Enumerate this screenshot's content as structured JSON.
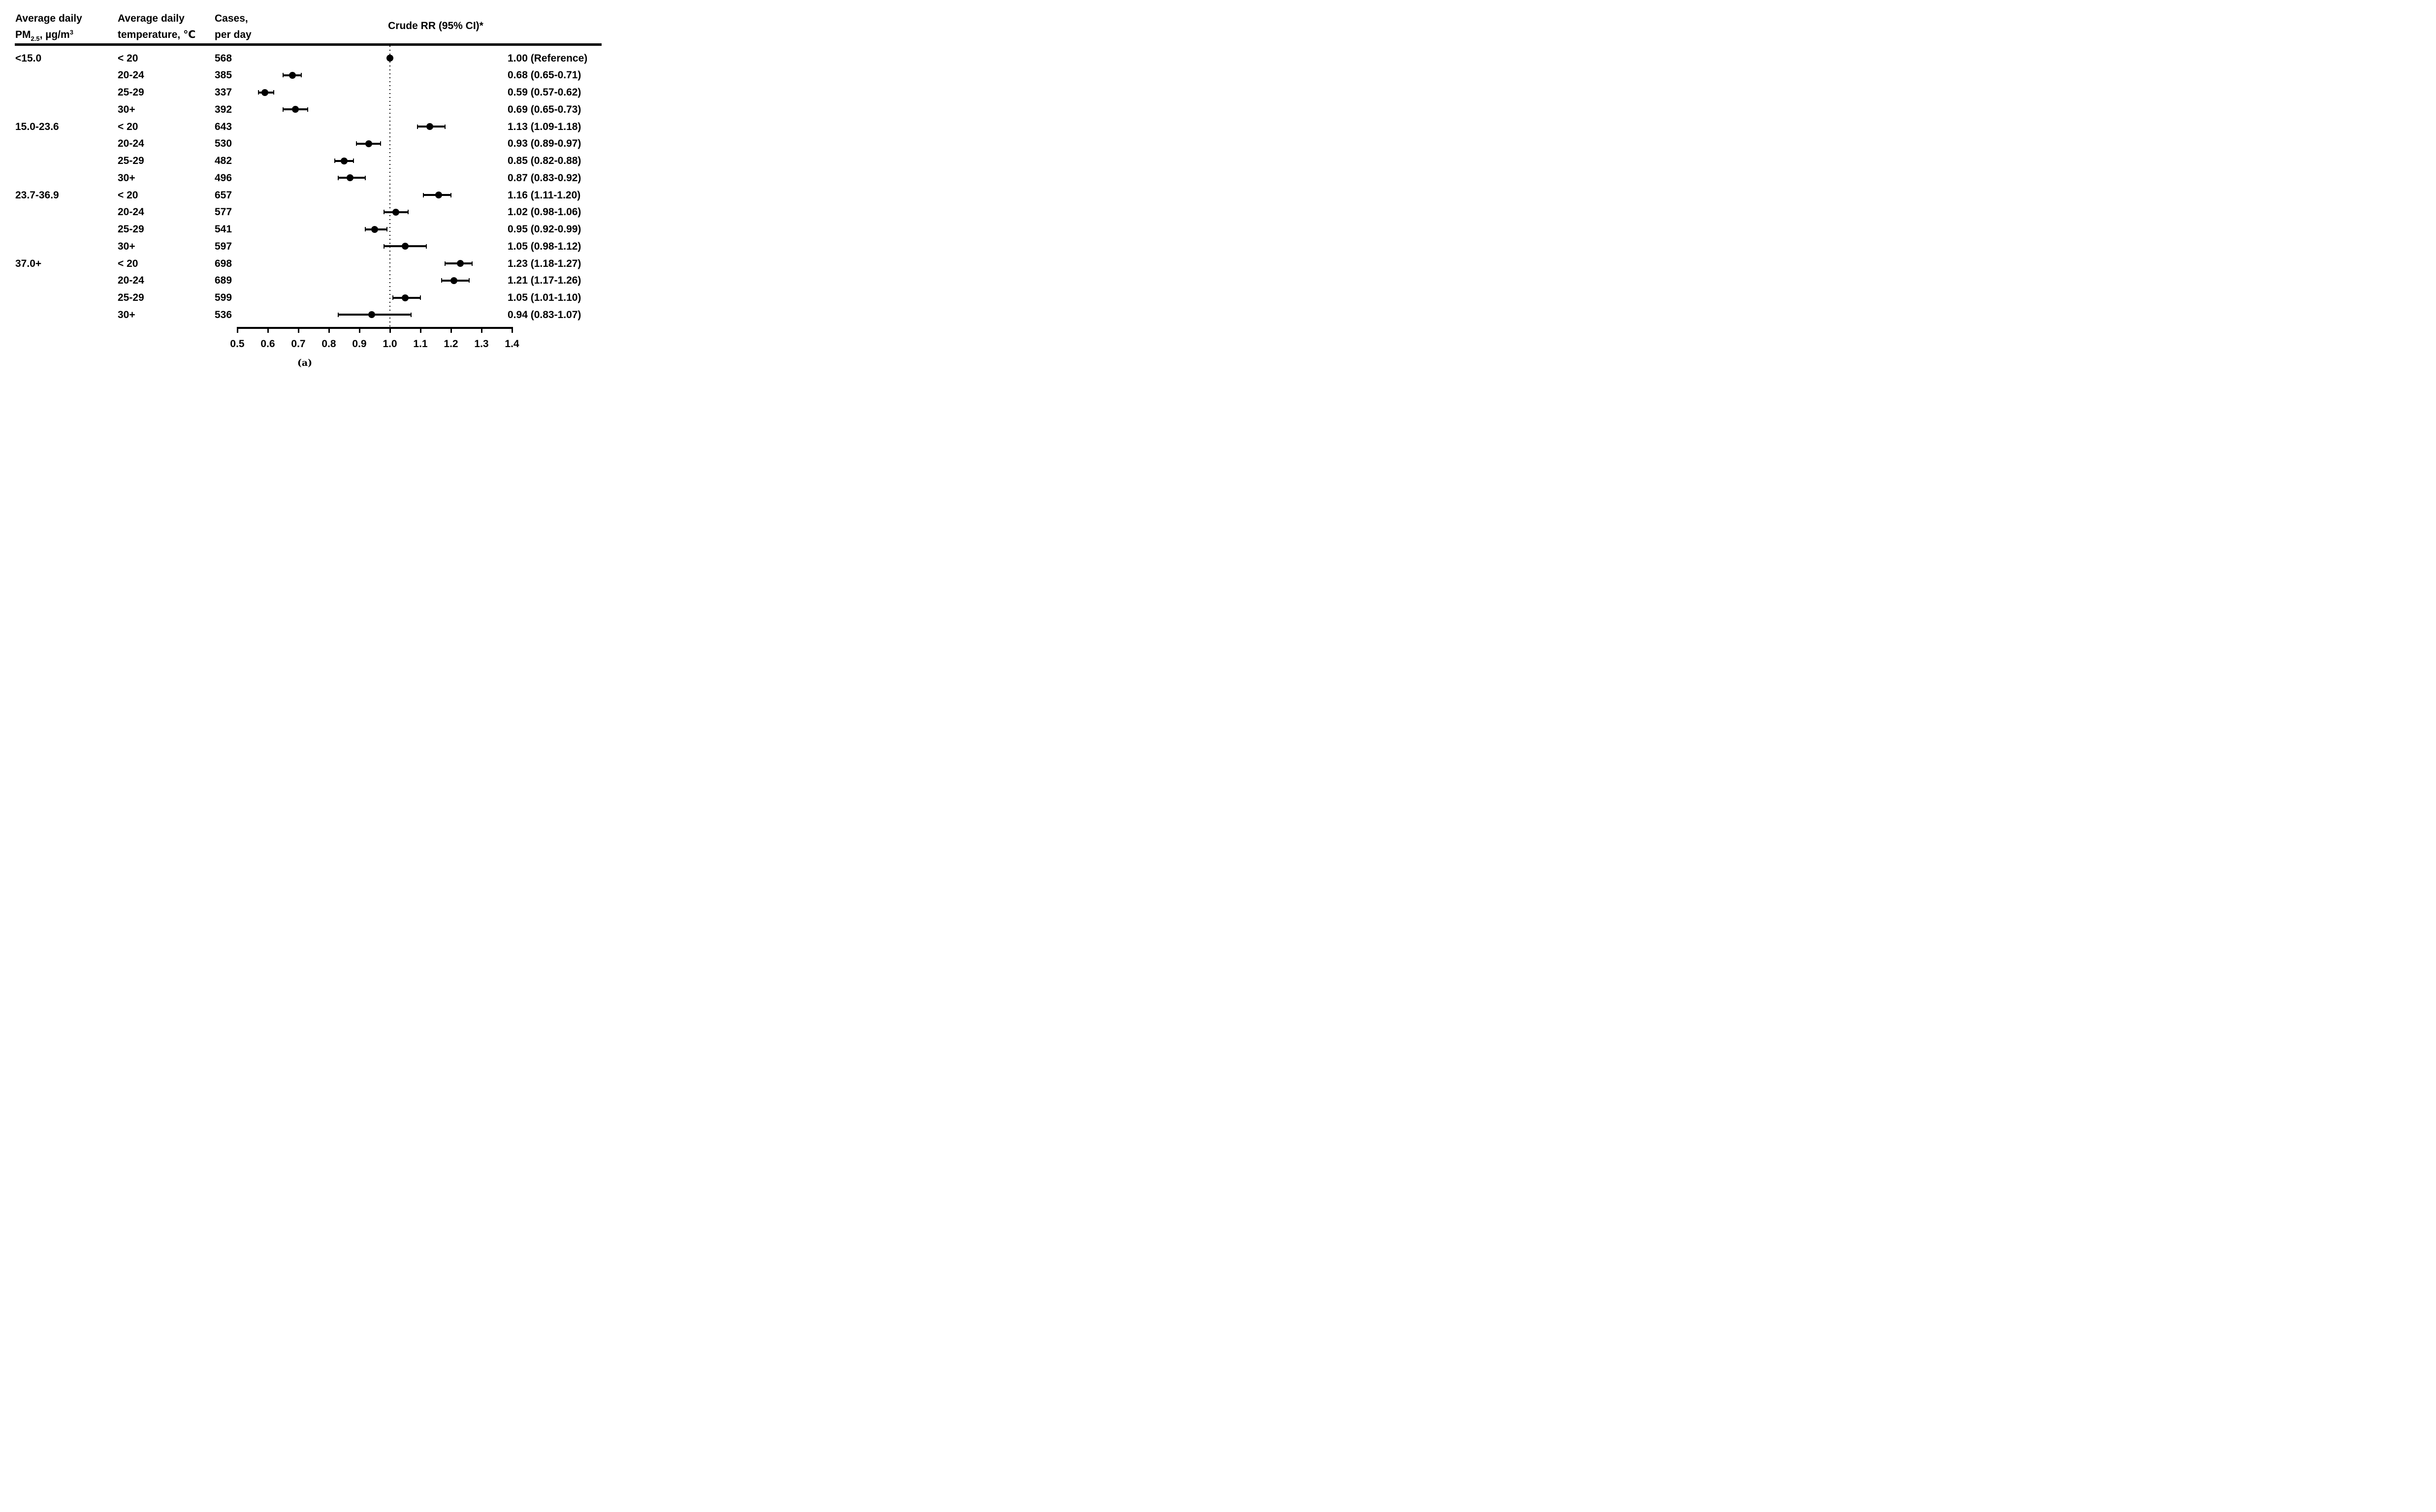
{
  "figure": {
    "header": {
      "col1_line1": "Average daily",
      "col1_line2_prefix": "PM",
      "col1_line2_sub": "2.5",
      "col1_line2_mid": ", µg/m",
      "col1_line2_sup": "3",
      "col2_line1": "Average daily",
      "col2_line2": "temperature, ℃",
      "col3_line1": "Cases,",
      "col3_line2": "per day",
      "title": "Crude RR (95% CI)*"
    },
    "caption": "(a)"
  },
  "chart_data": {
    "type": "forest",
    "title": "Crude RR (95% CI)*",
    "columns": [
      "Average daily PM2.5, µg/m3",
      "Average daily temperature, ℃",
      "Cases, per day",
      "Crude RR (95% CI)*"
    ],
    "x_axis": {
      "range": [
        0.5,
        1.4
      ],
      "tick_values": [
        0.5,
        0.6,
        0.7,
        0.8,
        0.9,
        1.0,
        1.1,
        1.2,
        1.3,
        1.4
      ],
      "tick_labels": [
        "0.5",
        "0.6",
        "0.7",
        "0.8",
        "0.9",
        "1.0",
        "1.1",
        "1.2",
        "1.3",
        "1.4"
      ],
      "reference_line": 1.0,
      "grid": false
    },
    "pm25_groups": [
      "<15.0",
      "15.0-23.6",
      "23.7-36.9",
      "37.0+"
    ],
    "rows": [
      {
        "pm25": "<15.0",
        "temp": "< 20",
        "cases": "568",
        "rr": 1.0,
        "ci_low": 1.0,
        "ci_high": 1.0,
        "rr_label": "1.00 (Reference)",
        "reference": true
      },
      {
        "pm25": "",
        "temp": "20-24",
        "cases": "385",
        "rr": 0.68,
        "ci_low": 0.65,
        "ci_high": 0.71,
        "rr_label": "0.68 (0.65-0.71)",
        "reference": false
      },
      {
        "pm25": "",
        "temp": "25-29",
        "cases": "337",
        "rr": 0.59,
        "ci_low": 0.57,
        "ci_high": 0.62,
        "rr_label": "0.59 (0.57-0.62)",
        "reference": false
      },
      {
        "pm25": "",
        "temp": "30+",
        "cases": "392",
        "rr": 0.69,
        "ci_low": 0.65,
        "ci_high": 0.73,
        "rr_label": "0.69 (0.65-0.73)",
        "reference": false
      },
      {
        "pm25": "15.0-23.6",
        "temp": "< 20",
        "cases": "643",
        "rr": 1.13,
        "ci_low": 1.09,
        "ci_high": 1.18,
        "rr_label": "1.13 (1.09-1.18)",
        "reference": false
      },
      {
        "pm25": "",
        "temp": "20-24",
        "cases": "530",
        "rr": 0.93,
        "ci_low": 0.89,
        "ci_high": 0.97,
        "rr_label": "0.93 (0.89-0.97)",
        "reference": false
      },
      {
        "pm25": "",
        "temp": "25-29",
        "cases": "482",
        "rr": 0.85,
        "ci_low": 0.82,
        "ci_high": 0.88,
        "rr_label": "0.85 (0.82-0.88)",
        "reference": false
      },
      {
        "pm25": "",
        "temp": "30+",
        "cases": "496",
        "rr": 0.87,
        "ci_low": 0.83,
        "ci_high": 0.92,
        "rr_label": "0.87 (0.83-0.92)",
        "reference": false
      },
      {
        "pm25": "23.7-36.9",
        "temp": "< 20",
        "cases": "657",
        "rr": 1.16,
        "ci_low": 1.11,
        "ci_high": 1.2,
        "rr_label": "1.16 (1.11-1.20)",
        "reference": false
      },
      {
        "pm25": "",
        "temp": "20-24",
        "cases": "577",
        "rr": 1.02,
        "ci_low": 0.98,
        "ci_high": 1.06,
        "rr_label": "1.02 (0.98-1.06)",
        "reference": false
      },
      {
        "pm25": "",
        "temp": "25-29",
        "cases": "541",
        "rr": 0.95,
        "ci_low": 0.92,
        "ci_high": 0.99,
        "rr_label": "0.95 (0.92-0.99)",
        "reference": false
      },
      {
        "pm25": "",
        "temp": "30+",
        "cases": "597",
        "rr": 1.05,
        "ci_low": 0.98,
        "ci_high": 1.12,
        "rr_label": "1.05 (0.98-1.12)",
        "reference": false
      },
      {
        "pm25": "37.0+",
        "temp": "< 20",
        "cases": "698",
        "rr": 1.23,
        "ci_low": 1.18,
        "ci_high": 1.27,
        "rr_label": "1.23 (1.18-1.27)",
        "reference": false
      },
      {
        "pm25": "",
        "temp": "20-24",
        "cases": "689",
        "rr": 1.21,
        "ci_low": 1.17,
        "ci_high": 1.26,
        "rr_label": "1.21 (1.17-1.26)",
        "reference": false
      },
      {
        "pm25": "",
        "temp": "25-29",
        "cases": "599",
        "rr": 1.05,
        "ci_low": 1.01,
        "ci_high": 1.1,
        "rr_label": "1.05 (1.01-1.10)",
        "reference": false
      },
      {
        "pm25": "",
        "temp": "30+",
        "cases": "536",
        "rr": 0.94,
        "ci_low": 0.83,
        "ci_high": 1.07,
        "rr_label": "0.94 (0.83-1.07)",
        "reference": false
      }
    ],
    "caption": "(a)"
  }
}
